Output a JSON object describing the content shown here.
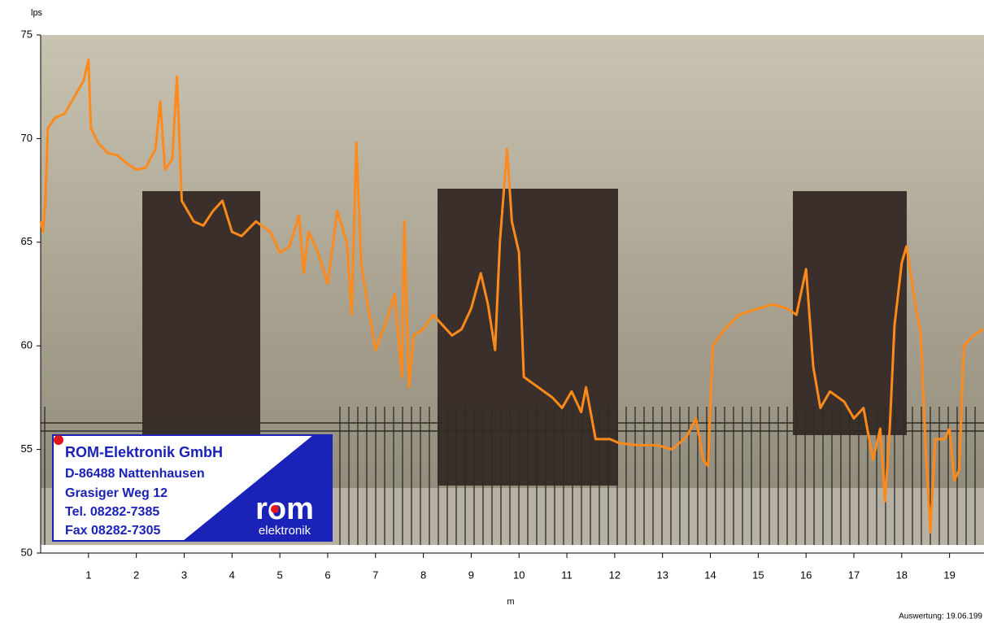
{
  "chart_data": {
    "type": "line",
    "y_label": "lps",
    "x_label": "m",
    "footer": "Auswertung: 19.06.199",
    "logo": {
      "company": "ROM-Elektronik GmbH",
      "city": "D-86488 Nattenhausen",
      "street": "Grasiger Weg 12",
      "tel": "Tel. 08282-7385",
      "fax": "Fax 08282-7305",
      "brand": "rom",
      "brand_sub": "elektronik"
    },
    "xlim": [
      0,
      19.72
    ],
    "ylim": [
      50,
      75
    ],
    "xticks": [
      1,
      2,
      3,
      4,
      5,
      6,
      7,
      8,
      9,
      10,
      11,
      12,
      13,
      14,
      15,
      16,
      17,
      18,
      19
    ],
    "yticks": [
      50,
      55,
      60,
      65,
      70,
      75
    ],
    "series": [
      {
        "color": "#ff8a1a",
        "x": [
          0,
          0.05,
          0.1,
          0.15,
          0.3,
          0.5,
          0.7,
          0.9,
          1.0,
          1.05,
          1.2,
          1.4,
          1.6,
          1.8,
          2.0,
          2.2,
          2.4,
          2.5,
          2.6,
          2.75,
          2.85,
          2.95,
          3.2,
          3.4,
          3.6,
          3.8,
          4.0,
          4.2,
          4.5,
          4.8,
          5.0,
          5.2,
          5.4,
          5.5,
          5.6,
          5.8,
          6.0,
          6.2,
          6.4,
          6.5,
          6.6,
          6.7,
          6.8,
          7.0,
          7.2,
          7.4,
          7.55,
          7.6,
          7.7,
          7.8,
          8.0,
          8.2,
          8.4,
          8.6,
          8.8,
          9.0,
          9.2,
          9.35,
          9.5,
          9.6,
          9.75,
          9.85,
          10.0,
          10.1,
          10.4,
          10.7,
          10.9,
          11.1,
          11.3,
          11.4,
          11.6,
          11.9,
          12.1,
          12.5,
          12.9,
          13.2,
          13.5,
          13.7,
          13.85,
          13.95,
          14.05,
          14.3,
          14.6,
          15.0,
          15.3,
          15.6,
          15.8,
          16.0,
          16.15,
          16.3,
          16.5,
          16.8,
          17.0,
          17.2,
          17.4,
          17.55,
          17.65,
          17.75,
          17.85,
          18.0,
          18.1,
          18.25,
          18.4,
          18.5,
          18.6,
          18.7,
          18.9,
          19.0,
          19.1,
          19.2,
          19.3,
          19.5,
          19.7
        ],
        "values": [
          66,
          65.5,
          67,
          70.5,
          71,
          71.2,
          72,
          72.8,
          73.8,
          70.5,
          69.8,
          69.3,
          69.2,
          68.8,
          68.5,
          68.6,
          69.5,
          71.8,
          68.5,
          69,
          73,
          67,
          66,
          65.8,
          66.5,
          67,
          65.5,
          65.3,
          66,
          65.5,
          64.5,
          64.8,
          66.3,
          63.5,
          65.5,
          64.5,
          63,
          66.5,
          65,
          61.5,
          69.8,
          64,
          62.5,
          59.8,
          61,
          62.5,
          58.5,
          66,
          58,
          60.5,
          60.8,
          61.5,
          61,
          60.5,
          60.8,
          61.8,
          63.5,
          62,
          59.8,
          65,
          69.5,
          66,
          64.5,
          58.5,
          58,
          57.5,
          57,
          57.8,
          56.8,
          58,
          55.5,
          55.5,
          55.3,
          55.2,
          55.2,
          55,
          55.6,
          56.5,
          54.5,
          54.2,
          60,
          60.8,
          61.5,
          61.8,
          62,
          61.8,
          61.5,
          63.7,
          59,
          57,
          57.8,
          57.3,
          56.5,
          57,
          54.5,
          56,
          52.5,
          56,
          61,
          64,
          64.8,
          62.5,
          60.5,
          55,
          51,
          55.5,
          55.5,
          56,
          53.5,
          54,
          60,
          60.5,
          60.8
        ]
      }
    ]
  }
}
